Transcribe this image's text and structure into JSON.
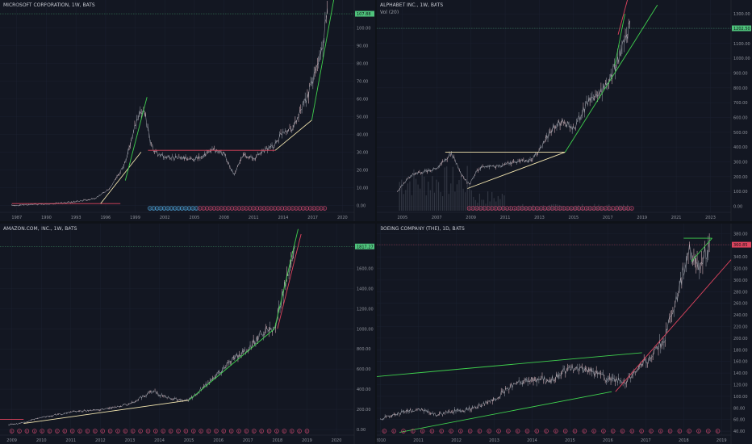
{
  "panes": [
    {
      "id": "msft",
      "title": "MICROSOFT CORPORATION, 1W, BATS",
      "vol_label": "",
      "last_price": "107.88",
      "last_price_color": "#4fc37c",
      "y_ticks": [
        "0.00",
        "10.00",
        "20.00",
        "30.00",
        "40.00",
        "50.00",
        "60.00",
        "70.00",
        "80.00",
        "90.00",
        "100.00"
      ],
      "x_ticks": [
        "1987",
        "1990",
        "1993",
        "1996",
        "1999",
        "2002",
        "2005",
        "2008",
        "2011",
        "2014",
        "2017",
        "2020"
      ],
      "events": "D D D D D D D D D D D D D D E E E E E E E E E E E E E E E E E E E E E E E E E E E E E E E E E E E E"
    },
    {
      "id": "googl",
      "title": "ALPHABET INC., 1W, BATS",
      "vol_label": "Vol (20)",
      "last_price": "1202.50",
      "last_price_color": "#4fc37c",
      "y_ticks": [
        "0.00",
        "100.00",
        "200.00",
        "300.00",
        "400.00",
        "500.00",
        "600.00",
        "700.00",
        "800.00",
        "900.00",
        "1000.00",
        "1100.00",
        "1200.00",
        "1300.00"
      ],
      "x_ticks": [
        "2005",
        "2007",
        "2009",
        "2011",
        "2013",
        "2015",
        "2017",
        "2019",
        "2021",
        "2023"
      ],
      "events": "E E E E E E E E E E E E E E E E E E E E E E E E E E E E E E E E E E E E E E E E E E E E"
    },
    {
      "id": "amzn",
      "title": "AMAZON.COM, INC., 1W, BATS",
      "vol_label": "",
      "last_price": "1817.27",
      "last_price_color": "#4fc37c",
      "y_ticks": [
        "0.00",
        "200.00",
        "400.00",
        "600.00",
        "800.00",
        "1000.00",
        "1200.00",
        "1400.00",
        "1600.00"
      ],
      "x_ticks": [
        "2009",
        "2010",
        "2011",
        "2012",
        "2013",
        "2014",
        "2015",
        "2016",
        "2017",
        "2018",
        "2019",
        "2020"
      ],
      "events": "E E E E E E E E E E E E E E E E E E E E E E E E E E E E E E E E E E E E E E E E"
    },
    {
      "id": "ba",
      "title": "BOEING COMPANY (THE), 1D, BATS",
      "vol_label": "",
      "last_price": "360.85",
      "last_price_color": "#e0445e",
      "y_ticks": [
        "40.00",
        "60.00",
        "80.00",
        "100.00",
        "120.00",
        "140.00",
        "160.00",
        "180.00",
        "200.00",
        "220.00",
        "240.00",
        "260.00",
        "280.00",
        "300.00",
        "320.00",
        "340.00",
        "360.00",
        "380.00"
      ],
      "x_ticks": [
        "2010",
        "2011",
        "2012",
        "2013",
        "2014",
        "2015",
        "2016",
        "2017",
        "2018",
        "2019"
      ],
      "events": "E E E E E E E E E E E E E E E E E E E E E E E E E E E E E E E E E E E E"
    }
  ],
  "chart_data": [
    {
      "type": "line",
      "title": "MICROSOFT CORPORATION, 1W, BATS",
      "x": [
        1986.5,
        1990,
        1993,
        1995,
        1996.5,
        1998,
        1999,
        1999.9,
        2000.5,
        2001,
        2002,
        2003,
        2005,
        2007,
        2008,
        2009,
        2010,
        2011,
        2012,
        2013,
        2014,
        2015,
        2016,
        2017,
        2018,
        2018.5
      ],
      "y": [
        0.1,
        0.6,
        2.0,
        4.0,
        10.0,
        24.0,
        45.0,
        55.0,
        36.0,
        30.0,
        27.0,
        27.0,
        26.0,
        31.0,
        29.0,
        17.0,
        29.0,
        26.0,
        31.0,
        33.0,
        42.0,
        44.0,
        55.0,
        70.0,
        90.0,
        107.88
      ],
      "ylim": [
        -3,
        112
      ],
      "xlim": [
        1985.3,
        2021.2
      ],
      "last": 107.88,
      "trendlines": [
        {
          "color": "#e0445e",
          "x": [
            1986.5,
            1997.5
          ],
          "y": [
            1.0,
            1.0
          ]
        },
        {
          "color": "#f4e7b0",
          "x": [
            1995.5,
            1999.6
          ],
          "y": [
            1.0,
            30.0
          ]
        },
        {
          "color": "#3fd04e",
          "x": [
            1998.0,
            2000.2
          ],
          "y": [
            14.0,
            61.0
          ]
        },
        {
          "color": "#e0445e",
          "x": [
            2000.3,
            2013.2
          ],
          "y": [
            31.0,
            31.0
          ]
        },
        {
          "color": "#f4e7b0",
          "x": [
            2013.2,
            2016.9
          ],
          "y": [
            31.0,
            48.0
          ]
        },
        {
          "color": "#3fd04e",
          "x": [
            2016.9,
            2019.2
          ],
          "y": [
            48.0,
            118.0
          ]
        }
      ]
    },
    {
      "type": "line",
      "title": "ALPHABET INC., 1W, BATS",
      "x": [
        2004.7,
        2005.5,
        2006.5,
        2007.0,
        2007.9,
        2008.5,
        2008.9,
        2009.5,
        2010.5,
        2011.5,
        2012.5,
        2013.0,
        2013.9,
        2014.5,
        2015.0,
        2015.8,
        2016.5,
        2017.5,
        2018.0,
        2018.3
      ],
      "y": [
        100,
        210,
        240,
        260,
        355,
        200,
        150,
        260,
        270,
        300,
        310,
        380,
        550,
        570,
        520,
        700,
        750,
        950,
        1150,
        1202.5
      ],
      "ylim": [
        -30,
        1350
      ],
      "xlim": [
        2003.5,
        2024.2
      ],
      "last": 1202.5,
      "trendlines": [
        {
          "color": "#f4e7b0",
          "x": [
            2007.5,
            2014.5
          ],
          "y": [
            365,
            365
          ]
        },
        {
          "color": "#f4e7b0",
          "x": [
            2008.8,
            2014.5
          ],
          "y": [
            120,
            365
          ]
        },
        {
          "color": "#3fd04e",
          "x": [
            2014.5,
            2019.9
          ],
          "y": [
            365,
            1360
          ]
        },
        {
          "color": "#e0445e",
          "x": [
            2017.6,
            2018.3
          ],
          "y": [
            1160,
            1460
          ]
        },
        {
          "color": "#3fd04e",
          "x": [
            2017.4,
            2018.0
          ],
          "y": [
            950,
            1300
          ]
        }
      ]
    },
    {
      "type": "line",
      "title": "AMAZON.COM, INC., 1W, BATS",
      "x": [
        2008.9,
        2009.3,
        2010,
        2011,
        2012,
        2013,
        2013.8,
        2014,
        2014.5,
        2015,
        2015.5,
        2016,
        2016.5,
        2017,
        2017.5,
        2017.9,
        2018.3,
        2018.6
      ],
      "y": [
        50,
        60,
        120,
        170,
        200,
        250,
        390,
        340,
        300,
        290,
        420,
        560,
        700,
        790,
        980,
        1000,
        1500,
        1817.27
      ],
      "ylim": [
        -40,
        1980
      ],
      "xlim": [
        2008.6,
        2020.6
      ],
      "last": 1817.27,
      "trendlines": [
        {
          "color": "#e0445e",
          "x": [
            2008.6,
            2009.4
          ],
          "y": [
            100,
            100
          ]
        },
        {
          "color": "#f4e7b0",
          "x": [
            2009.4,
            2015.0
          ],
          "y": [
            60,
            290
          ]
        },
        {
          "color": "#3fd04e",
          "x": [
            2015.0,
            2017.9
          ],
          "y": [
            290,
            1000
          ]
        },
        {
          "color": "#3fd04e",
          "x": [
            2017.9,
            2018.7
          ],
          "y": [
            1000,
            1990
          ]
        },
        {
          "color": "#e0445e",
          "x": [
            2018.0,
            2018.8
          ],
          "y": [
            1000,
            1940
          ]
        }
      ]
    },
    {
      "type": "line",
      "title": "BOEING COMPANY (THE), 1D, BATS",
      "x": [
        2010,
        2010.5,
        2011,
        2011.5,
        2012,
        2012.5,
        2013,
        2013.5,
        2014,
        2014.5,
        2015,
        2015.5,
        2016,
        2016.5,
        2017,
        2017.5,
        2017.9,
        2018.1,
        2018.4,
        2018.7
      ],
      "y": [
        60,
        72,
        78,
        68,
        75,
        80,
        95,
        120,
        130,
        128,
        150,
        145,
        130,
        125,
        160,
        200,
        290,
        350,
        330,
        360.85
      ],
      "ylim": [
        36,
        386
      ],
      "xlim": [
        2009.9,
        2019.25
      ],
      "last": 360.85,
      "trendlines": [
        {
          "color": "#3fd04e",
          "x": [
            2009.9,
            2016.9
          ],
          "y": [
            134,
            175
          ]
        },
        {
          "color": "#3fd04e",
          "x": [
            2010.5,
            2016.1
          ],
          "y": [
            38,
            108
          ]
        },
        {
          "color": "#e0445e",
          "x": [
            2016.2,
            2019.25
          ],
          "y": [
            108,
            335
          ]
        },
        {
          "color": "#3fd04e",
          "x": [
            2018.0,
            2018.75
          ],
          "y": [
            372,
            372
          ]
        },
        {
          "color": "#3fd04e",
          "x": [
            2018.2,
            2018.75
          ],
          "y": [
            332,
            372
          ]
        }
      ]
    }
  ]
}
